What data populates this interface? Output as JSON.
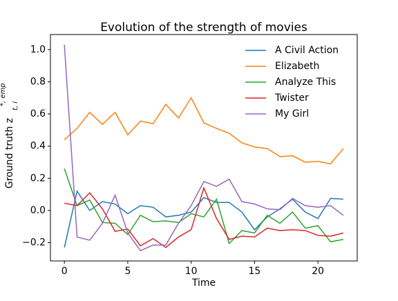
{
  "chart_data": {
    "type": "line",
    "title": "Evolution of the strength of movies",
    "xlabel": "Time",
    "ylabel": "Ground truth z",
    "ylabel_superscript": "*, emp",
    "ylabel_subscript": "t, i",
    "x": [
      0,
      1,
      2,
      3,
      4,
      5,
      6,
      7,
      8,
      9,
      10,
      11,
      12,
      13,
      14,
      15,
      16,
      17,
      18,
      19,
      20,
      21,
      22
    ],
    "series": [
      {
        "name": "A Civil Action",
        "color": "#1f77b4",
        "values": [
          -0.23,
          0.12,
          0.0,
          0.055,
          0.04,
          -0.02,
          0.03,
          0.02,
          -0.04,
          -0.03,
          -0.01,
          0.08,
          0.05,
          0.05,
          -0.01,
          -0.12,
          -0.04,
          0.01,
          0.07,
          -0.01,
          -0.05,
          0.075,
          0.07
        ]
      },
      {
        "name": "Elizabeth",
        "color": "#ff7f0e",
        "values": [
          0.44,
          0.51,
          0.61,
          0.535,
          0.61,
          0.47,
          0.555,
          0.54,
          0.66,
          0.575,
          0.7,
          0.545,
          0.51,
          0.48,
          0.42,
          0.395,
          0.385,
          0.335,
          0.34,
          0.3,
          0.305,
          0.29,
          0.385
        ]
      },
      {
        "name": "Analyze This",
        "color": "#2ca02c",
        "values": [
          0.26,
          0.03,
          0.065,
          -0.075,
          -0.08,
          -0.15,
          -0.03,
          -0.07,
          -0.065,
          -0.075,
          -0.02,
          -0.04,
          0.07,
          -0.205,
          -0.125,
          -0.14,
          -0.03,
          -0.08,
          -0.01,
          -0.11,
          -0.095,
          -0.195,
          -0.18
        ]
      },
      {
        "name": "Twister",
        "color": "#d62728",
        "values": [
          0.045,
          0.03,
          0.11,
          0.01,
          -0.13,
          -0.115,
          -0.22,
          -0.175,
          -0.23,
          -0.165,
          -0.12,
          0.14,
          -0.05,
          -0.18,
          -0.16,
          -0.165,
          -0.11,
          -0.125,
          -0.12,
          -0.125,
          -0.155,
          -0.16,
          -0.14
        ]
      },
      {
        "name": "My Girl",
        "color": "#9467bd",
        "values": [
          1.03,
          -0.165,
          -0.185,
          -0.08,
          0.095,
          -0.14,
          -0.25,
          -0.215,
          -0.215,
          -0.08,
          0.03,
          0.18,
          0.15,
          0.195,
          0.055,
          0.04,
          0.01,
          0.005,
          0.075,
          0.03,
          0.02,
          0.03,
          -0.03
        ]
      }
    ],
    "xlim": [
      -1.1,
      23.1
    ],
    "ylim": [
      -0.314,
      1.094
    ],
    "xticks": [
      0,
      5,
      10,
      15,
      20
    ],
    "yticks": [
      {
        "value": -0.2,
        "label": "−0.2"
      },
      {
        "value": 0,
        "label": "0.0"
      },
      0.2,
      0.4,
      0.6,
      0.8,
      {
        "value": 1,
        "label": "1.0"
      }
    ],
    "legend": "upper right",
    "grid": false
  }
}
